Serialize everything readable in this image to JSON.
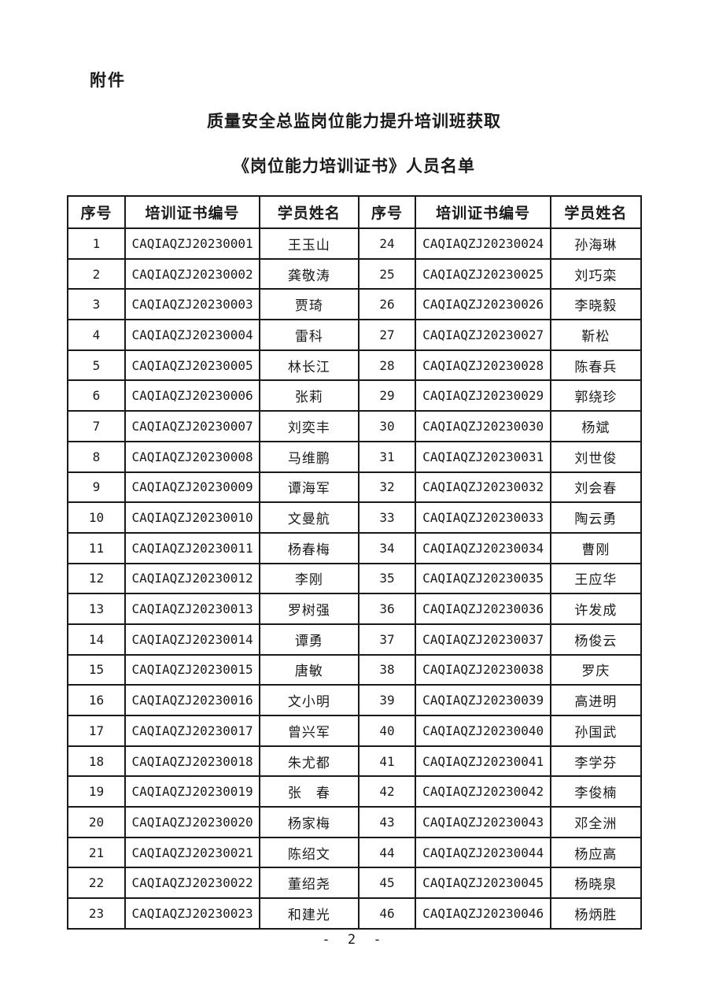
{
  "page": {
    "attachment_label": "附件",
    "title_line1": "质量安全总监岗位能力提升培训班获取",
    "title_line2": "《岗位能力培训证书》人员名单",
    "page_number": "- 2 -"
  },
  "table": {
    "headers": [
      "序号",
      "培训证书编号",
      "学员姓名",
      "序号",
      "培训证书编号",
      "学员姓名"
    ],
    "col_widths_pct": [
      10,
      23.5,
      17.2,
      10,
      23.5,
      15.8
    ],
    "rows": [
      [
        "1",
        "CAQIAQZJ20230001",
        "王玉山",
        "24",
        "CAQIAQZJ20230024",
        "孙海琳"
      ],
      [
        "2",
        "CAQIAQZJ20230002",
        "龚敬涛",
        "25",
        "CAQIAQZJ20230025",
        "刘巧栾"
      ],
      [
        "3",
        "CAQIAQZJ20230003",
        "贾琦",
        "26",
        "CAQIAQZJ20230026",
        "李晓毅"
      ],
      [
        "4",
        "CAQIAQZJ20230004",
        "雷科",
        "27",
        "CAQIAQZJ20230027",
        "靳松"
      ],
      [
        "5",
        "CAQIAQZJ20230005",
        "林长江",
        "28",
        "CAQIAQZJ20230028",
        "陈春兵"
      ],
      [
        "6",
        "CAQIAQZJ20230006",
        "张莉",
        "29",
        "CAQIAQZJ20230029",
        "郭绕珍"
      ],
      [
        "7",
        "CAQIAQZJ20230007",
        "刘奕丰",
        "30",
        "CAQIAQZJ20230030",
        "杨斌"
      ],
      [
        "8",
        "CAQIAQZJ20230008",
        "马维鹏",
        "31",
        "CAQIAQZJ20230031",
        "刘世俊"
      ],
      [
        "9",
        "CAQIAQZJ20230009",
        "谭海军",
        "32",
        "CAQIAQZJ20230032",
        "刘会春"
      ],
      [
        "10",
        "CAQIAQZJ20230010",
        "文曼航",
        "33",
        "CAQIAQZJ20230033",
        "陶云勇"
      ],
      [
        "11",
        "CAQIAQZJ20230011",
        "杨春梅",
        "34",
        "CAQIAQZJ20230034",
        "曹刚"
      ],
      [
        "12",
        "CAQIAQZJ20230012",
        "李刚",
        "35",
        "CAQIAQZJ20230035",
        "王应华"
      ],
      [
        "13",
        "CAQIAQZJ20230013",
        "罗树强",
        "36",
        "CAQIAQZJ20230036",
        "许发成"
      ],
      [
        "14",
        "CAQIAQZJ20230014",
        "谭勇",
        "37",
        "CAQIAQZJ20230037",
        "杨俊云"
      ],
      [
        "15",
        "CAQIAQZJ20230015",
        "唐敏",
        "38",
        "CAQIAQZJ20230038",
        "罗庆"
      ],
      [
        "16",
        "CAQIAQZJ20230016",
        "文小明",
        "39",
        "CAQIAQZJ20230039",
        "高进明"
      ],
      [
        "17",
        "CAQIAQZJ20230017",
        "曾兴军",
        "40",
        "CAQIAQZJ20230040",
        "孙国武"
      ],
      [
        "18",
        "CAQIAQZJ20230018",
        "朱尤都",
        "41",
        "CAQIAQZJ20230041",
        "李学芬"
      ],
      [
        "19",
        "CAQIAQZJ20230019",
        "张　春",
        "42",
        "CAQIAQZJ20230042",
        "李俊楠"
      ],
      [
        "20",
        "CAQIAQZJ20230020",
        "杨家梅",
        "43",
        "CAQIAQZJ20230043",
        "邓全洲"
      ],
      [
        "21",
        "CAQIAQZJ20230021",
        "陈绍文",
        "44",
        "CAQIAQZJ20230044",
        "杨应高"
      ],
      [
        "22",
        "CAQIAQZJ20230022",
        "董绍尧",
        "45",
        "CAQIAQZJ20230045",
        "杨晓泉"
      ],
      [
        "23",
        "CAQIAQZJ20230023",
        "和建光",
        "46",
        "CAQIAQZJ20230046",
        "杨炳胜"
      ]
    ]
  }
}
